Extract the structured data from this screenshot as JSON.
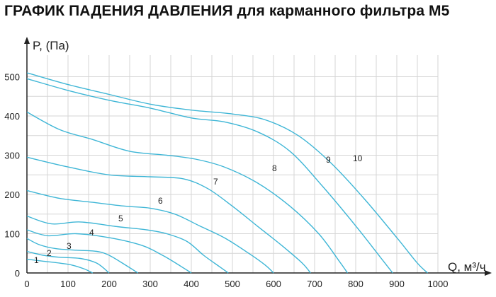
{
  "chart_data": {
    "type": "line",
    "title": "ГРАФИК ПАДЕНИЯ ДАВЛЕНИЯ для карманного фильтра М5",
    "ylabel": "P, (Па)",
    "xlabel": "Q, м³/ч",
    "xlim": [
      0,
      1000
    ],
    "ylim": [
      0,
      500
    ],
    "x_ticks": [
      "0",
      "100",
      "200",
      "300",
      "400",
      "500",
      "600",
      "700",
      "800",
      "900",
      "1000"
    ],
    "y_ticks": [
      "0",
      "100",
      "200",
      "300",
      "400",
      "500"
    ],
    "grid": true,
    "line_color": "#3fb6d6",
    "series": [
      {
        "name": "1",
        "points": [
          [
            0,
            35
          ],
          [
            40,
            30
          ],
          [
            80,
            25
          ],
          [
            110,
            20
          ],
          [
            140,
            10
          ],
          [
            160,
            0
          ]
        ]
      },
      {
        "name": "2",
        "points": [
          [
            0,
            55
          ],
          [
            40,
            45
          ],
          [
            80,
            40
          ],
          [
            130,
            37
          ],
          [
            170,
            25
          ],
          [
            200,
            0
          ]
        ]
      },
      {
        "name": "3",
        "points": [
          [
            0,
            88
          ],
          [
            30,
            72
          ],
          [
            70,
            62
          ],
          [
            120,
            58
          ],
          [
            170,
            55
          ],
          [
            200,
            45
          ],
          [
            240,
            20
          ],
          [
            270,
            0
          ]
        ]
      },
      {
        "name": "4",
        "points": [
          [
            0,
            110
          ],
          [
            50,
            95
          ],
          [
            120,
            100
          ],
          [
            200,
            90
          ],
          [
            280,
            70
          ],
          [
            330,
            45
          ],
          [
            370,
            20
          ],
          [
            400,
            0
          ]
        ]
      },
      {
        "name": "5",
        "points": [
          [
            0,
            145
          ],
          [
            60,
            125
          ],
          [
            130,
            130
          ],
          [
            220,
            118
          ],
          [
            290,
            110
          ],
          [
            340,
            100
          ],
          [
            390,
            80
          ],
          [
            430,
            45
          ],
          [
            470,
            15
          ],
          [
            490,
            0
          ]
        ]
      },
      {
        "name": "6",
        "points": [
          [
            0,
            210
          ],
          [
            80,
            190
          ],
          [
            160,
            180
          ],
          [
            240,
            170
          ],
          [
            300,
            165
          ],
          [
            360,
            150
          ],
          [
            420,
            120
          ],
          [
            480,
            90
          ],
          [
            540,
            50
          ],
          [
            580,
            20
          ],
          [
            600,
            0
          ]
        ]
      },
      {
        "name": "7",
        "points": [
          [
            0,
            295
          ],
          [
            100,
            270
          ],
          [
            200,
            250
          ],
          [
            300,
            245
          ],
          [
            380,
            240
          ],
          [
            440,
            215
          ],
          [
            500,
            170
          ],
          [
            560,
            120
          ],
          [
            620,
            70
          ],
          [
            670,
            25
          ],
          [
            690,
            0
          ]
        ]
      },
      {
        "name": "8",
        "points": [
          [
            0,
            410
          ],
          [
            80,
            365
          ],
          [
            160,
            340
          ],
          [
            250,
            310
          ],
          [
            340,
            300
          ],
          [
            410,
            290
          ],
          [
            480,
            270
          ],
          [
            560,
            230
          ],
          [
            640,
            170
          ],
          [
            710,
            100
          ],
          [
            760,
            30
          ],
          [
            780,
            0
          ]
        ]
      },
      {
        "name": "9",
        "points": [
          [
            0,
            495
          ],
          [
            100,
            465
          ],
          [
            200,
            440
          ],
          [
            300,
            420
          ],
          [
            400,
            395
          ],
          [
            480,
            385
          ],
          [
            560,
            360
          ],
          [
            640,
            310
          ],
          [
            720,
            220
          ],
          [
            800,
            120
          ],
          [
            860,
            40
          ],
          [
            890,
            0
          ]
        ]
      },
      {
        "name": "10",
        "points": [
          [
            0,
            510
          ],
          [
            100,
            480
          ],
          [
            200,
            455
          ],
          [
            300,
            430
          ],
          [
            400,
            415
          ],
          [
            500,
            405
          ],
          [
            580,
            390
          ],
          [
            660,
            350
          ],
          [
            740,
            280
          ],
          [
            820,
            190
          ],
          [
            900,
            90
          ],
          [
            950,
            25
          ],
          [
            975,
            0
          ]
        ]
      }
    ],
    "labels": [
      {
        "text": "1",
        "x": 25,
        "y": 18
      },
      {
        "text": "2",
        "x": 85,
        "y": 35
      },
      {
        "text": "3",
        "x": 165,
        "y": 48
      },
      {
        "text": "4",
        "x": 255,
        "y": 80
      },
      {
        "text": "5",
        "x": 370,
        "y": 118
      },
      {
        "text": "6",
        "x": 555,
        "y": 180
      },
      {
        "text": "7",
        "x": 770,
        "y": 255
      },
      {
        "text": "8",
        "x": 1000,
        "y": 290
      },
      {
        "text": "9",
        "x": 1230,
        "y": 300
      },
      {
        "text": "10",
        "x": 1370,
        "y": 310
      }
    ]
  }
}
